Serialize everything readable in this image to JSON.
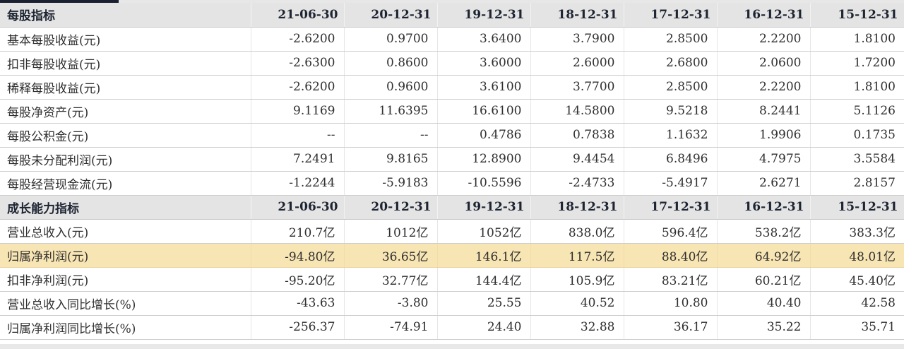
{
  "app": {
    "description": "股票财务指标表",
    "colors": {
      "tab_indicator": "#1b2130",
      "section_header_bg": "#e4e4e4",
      "highlight_row_bg": "#f8e5b4",
      "header_text": "#1d2432",
      "cell_text": "#2f2f2f"
    }
  },
  "table": {
    "columns": [
      "21-06-30",
      "20-12-31",
      "19-12-31",
      "18-12-31",
      "17-12-31",
      "16-12-31",
      "15-12-31"
    ],
    "sections": [
      {
        "title": "每股指标",
        "rows": [
          {
            "label": "基本每股收益(元)",
            "highlight": false,
            "values": [
              "-2.6200",
              "0.9700",
              "3.6400",
              "3.7900",
              "2.8500",
              "2.2200",
              "1.8100"
            ]
          },
          {
            "label": "扣非每股收益(元)",
            "highlight": false,
            "values": [
              "-2.6300",
              "0.8600",
              "3.6000",
              "2.6000",
              "2.6800",
              "2.0600",
              "1.7200"
            ]
          },
          {
            "label": "稀释每股收益(元)",
            "highlight": false,
            "values": [
              "-2.6200",
              "0.9600",
              "3.6100",
              "3.7700",
              "2.8500",
              "2.2200",
              "1.8100"
            ]
          },
          {
            "label": "每股净资产(元)",
            "highlight": false,
            "values": [
              "9.1169",
              "11.6395",
              "16.6100",
              "14.5800",
              "9.5218",
              "8.2441",
              "5.1126"
            ]
          },
          {
            "label": "每股公积金(元)",
            "highlight": false,
            "values": [
              "--",
              "--",
              "0.4786",
              "0.7838",
              "1.1632",
              "1.9906",
              "0.1735"
            ]
          },
          {
            "label": "每股未分配利润(元)",
            "highlight": false,
            "values": [
              "7.2491",
              "9.8165",
              "12.8900",
              "9.4454",
              "6.8496",
              "4.7975",
              "3.5584"
            ]
          },
          {
            "label": "每股经营现金流(元)",
            "highlight": false,
            "values": [
              "-1.2244",
              "-5.9183",
              "-10.5596",
              "-2.4733",
              "-5.4917",
              "2.6271",
              "2.8157"
            ]
          }
        ]
      },
      {
        "title": "成长能力指标",
        "rows": [
          {
            "label": "营业总收入(元)",
            "highlight": false,
            "values": [
              "210.7亿",
              "1012亿",
              "1052亿",
              "838.0亿",
              "596.4亿",
              "538.2亿",
              "383.3亿"
            ]
          },
          {
            "label": "归属净利润(元)",
            "highlight": true,
            "values": [
              "-94.80亿",
              "36.65亿",
              "146.1亿",
              "117.5亿",
              "88.40亿",
              "64.92亿",
              "48.01亿"
            ]
          },
          {
            "label": "扣非净利润(元)",
            "highlight": false,
            "values": [
              "-95.20亿",
              "32.77亿",
              "144.4亿",
              "105.9亿",
              "83.21亿",
              "60.21亿",
              "45.40亿"
            ]
          },
          {
            "label": "营业总收入同比增长(%)",
            "highlight": false,
            "values": [
              "-43.63",
              "-3.80",
              "25.55",
              "40.52",
              "10.80",
              "40.40",
              "42.58"
            ]
          },
          {
            "label": "归属净利润同比增长(%)",
            "highlight": false,
            "values": [
              "-256.37",
              "-74.91",
              "24.40",
              "32.88",
              "36.17",
              "35.22",
              "35.71"
            ]
          }
        ]
      }
    ]
  }
}
